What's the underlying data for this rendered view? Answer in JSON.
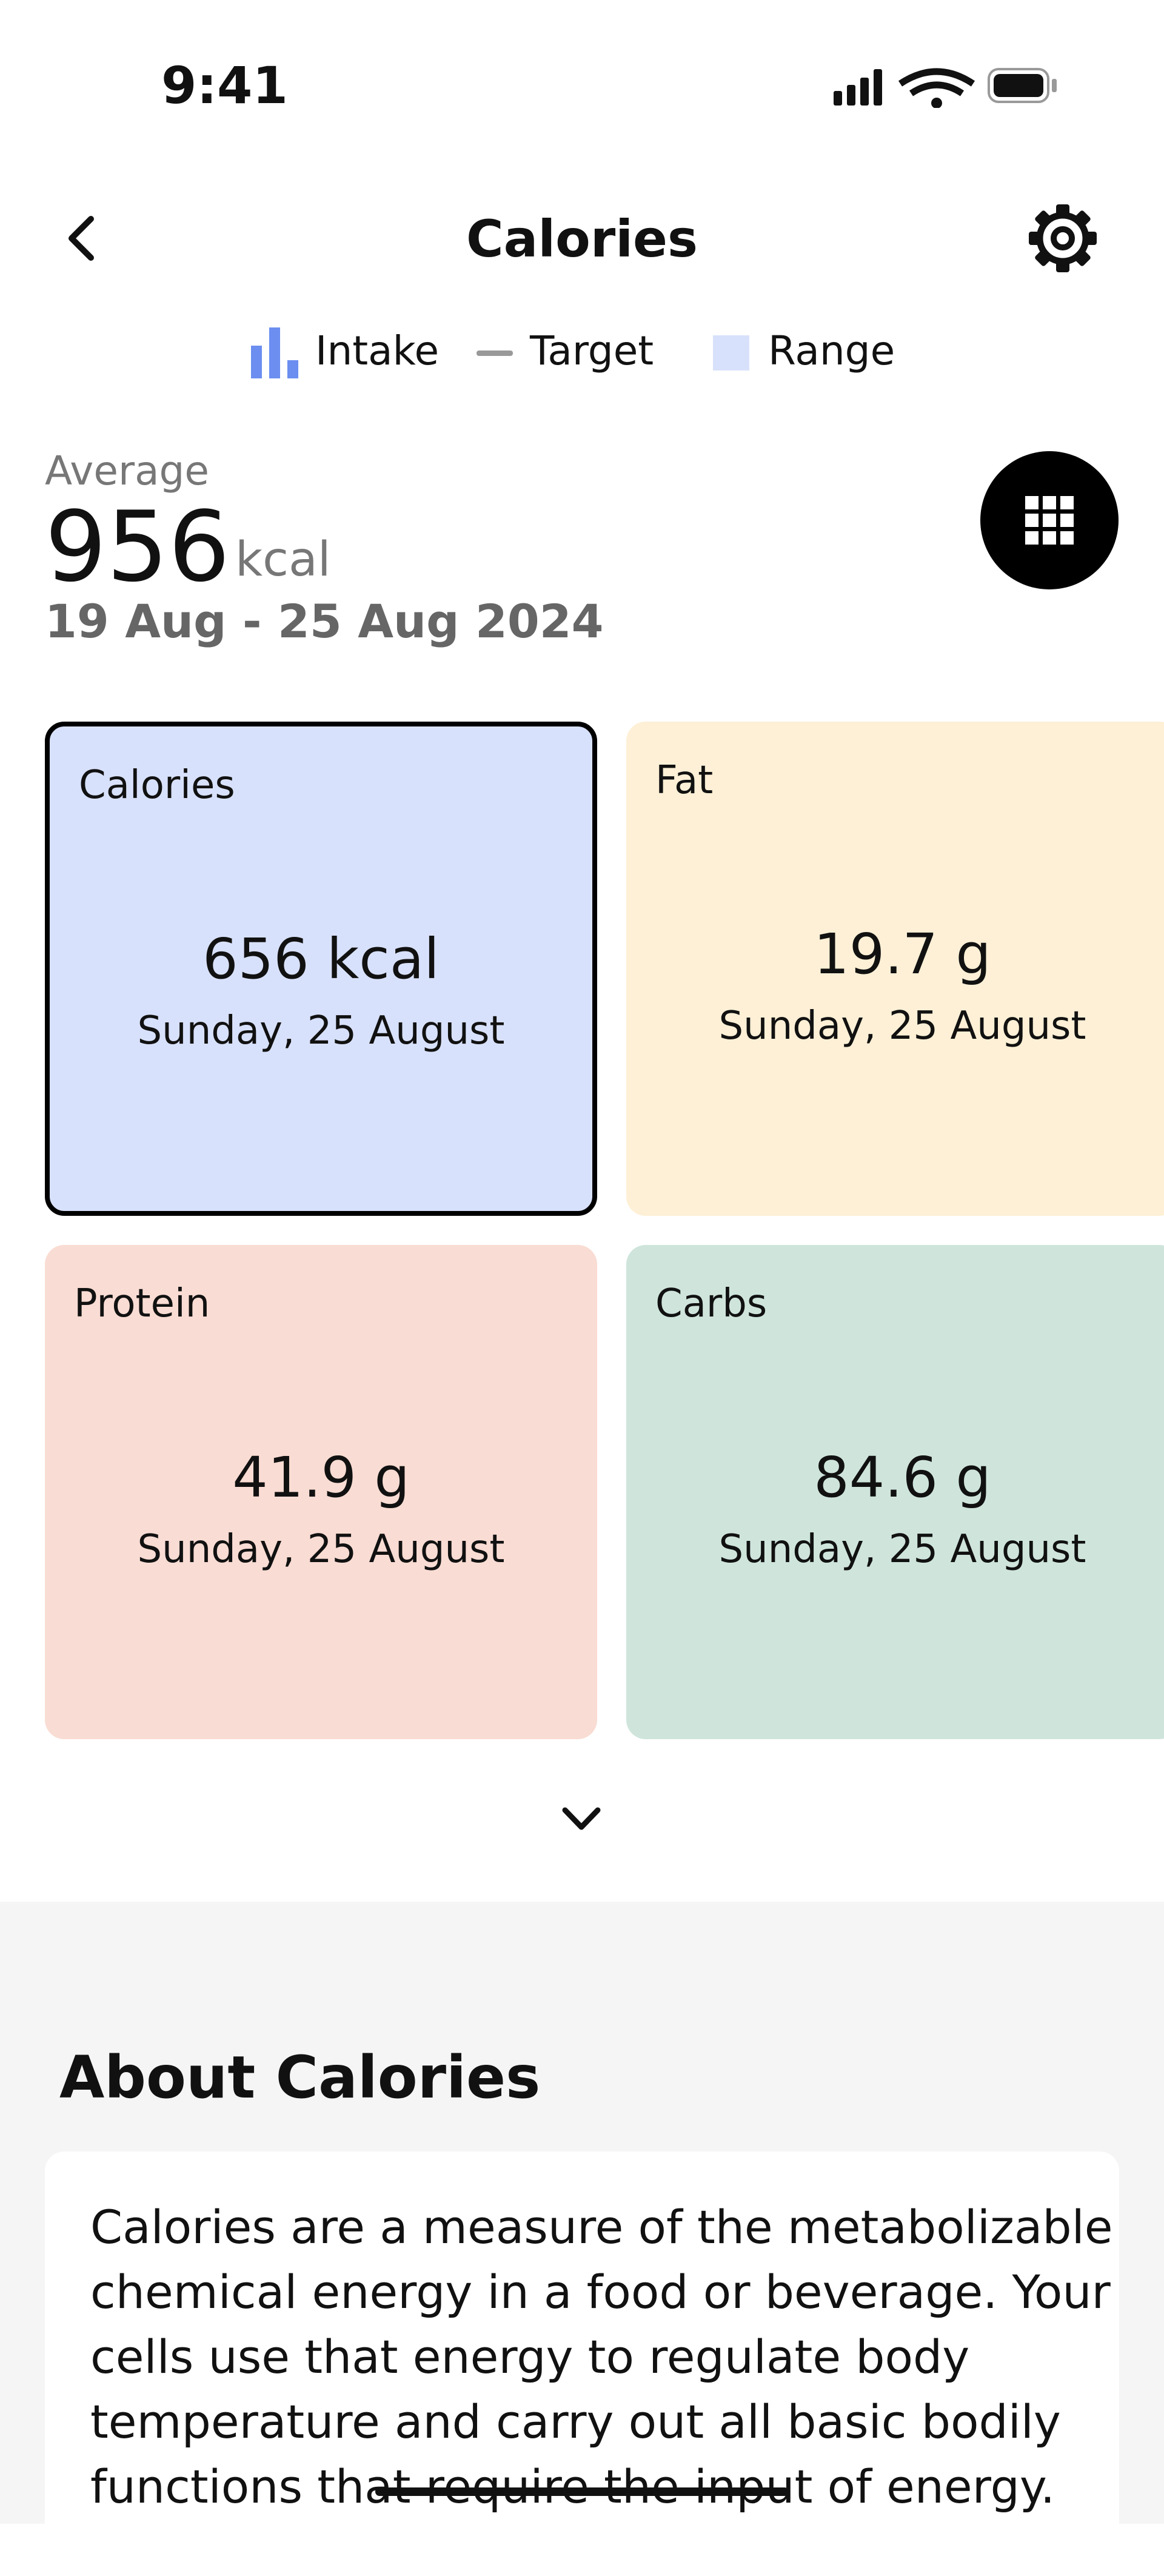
{
  "status_bar": {
    "time": "9:41"
  },
  "header": {
    "title": "Calories"
  },
  "legend": [
    "Intake",
    "Target",
    "Range"
  ],
  "summary": {
    "label": "Average",
    "value": "956",
    "unit": "kcal",
    "date_range": "19 Aug - 25 Aug 2024"
  },
  "cards": [
    {
      "label": "Calories",
      "value": "656 kcal",
      "date": "Sunday, 25 August"
    },
    {
      "label": "Fat",
      "value": "19.7 g",
      "date": "Sunday, 25 August"
    },
    {
      "label": "Protein",
      "value": "41.9 g",
      "date": "Sunday, 25 August"
    },
    {
      "label": "Carbs",
      "value": "84.6 g",
      "date": "Sunday, 25 August"
    }
  ],
  "about": {
    "title": "About Calories",
    "lines": [
      "Calories are a measure of the metabolizable",
      "chemical energy in a food or beverage. Your",
      "cells use that energy to regulate body",
      "temperature and carry out all basic bodily",
      "functions that require the input of energy."
    ]
  }
}
